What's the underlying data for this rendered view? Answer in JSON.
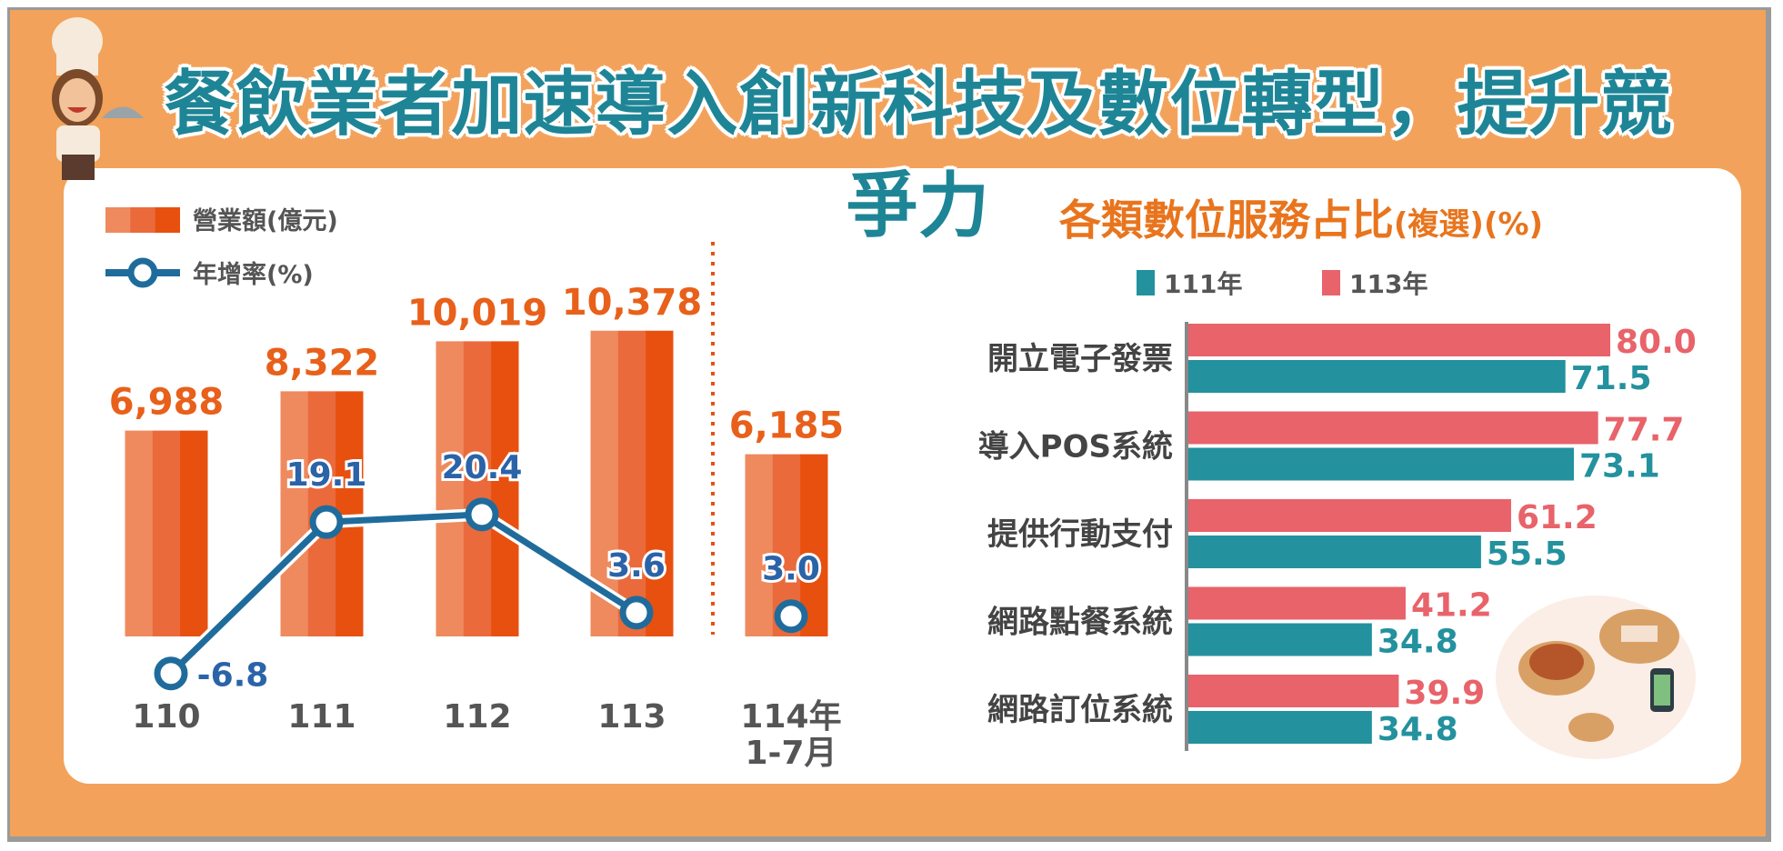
{
  "title": "餐飲業者加速導入創新科技及數位轉型，提升競爭力",
  "colors": {
    "background": "#F2A25A",
    "title": "#1E8596",
    "bar_light": "#EE8A5E",
    "bar_mid": "#EA6A3C",
    "bar_dark": "#E8500F",
    "line": "#1F6C9C",
    "line_label": "#2B63A8",
    "series_111": "#23919E",
    "series_113": "#E8636A",
    "right_title": "#E8751E"
  },
  "chart_data": [
    {
      "type": "bar",
      "title": "",
      "legend": [
        {
          "name": "營業額(億元)",
          "kind": "bar"
        },
        {
          "name": "年增率(%)",
          "kind": "line"
        }
      ],
      "categories": [
        "110",
        "111",
        "112",
        "113",
        "114年 1-7月"
      ],
      "category_lines": [
        [
          "110"
        ],
        [
          "111"
        ],
        [
          "112"
        ],
        [
          "113"
        ],
        [
          "114年",
          "1-7月"
        ]
      ],
      "series": [
        {
          "name": "營業額(億元)",
          "type": "bar",
          "values": [
            6988,
            8322,
            10019,
            10378,
            6185
          ],
          "labels": [
            "6,988",
            "8,322",
            "10,019",
            "10,378",
            "6,185"
          ]
        },
        {
          "name": "年增率(%)",
          "type": "line",
          "values": [
            -6.8,
            19.1,
            20.4,
            3.6,
            3.0
          ],
          "labels": [
            "-6.8",
            "19.1",
            "20.4",
            "3.6",
            "3.0"
          ],
          "connected": [
            true,
            true,
            true,
            true,
            false
          ]
        }
      ],
      "separator_before": "114年 1-7月"
    },
    {
      "type": "bar",
      "orientation": "horizontal",
      "title": "各類數位服務占比",
      "title_suffix": "(複選)(%)",
      "legend": [
        "111年",
        "113年"
      ],
      "categories": [
        "開立電子發票",
        "導入POS系統",
        "提供行動支付",
        "網路點餐系統",
        "網路訂位系統"
      ],
      "series": [
        {
          "name": "113年",
          "values": [
            80.0,
            77.7,
            61.2,
            41.2,
            39.9
          ],
          "labels": [
            "80.0",
            "77.7",
            "61.2",
            "41.2",
            "39.9"
          ]
        },
        {
          "name": "111年",
          "values": [
            71.5,
            73.1,
            55.5,
            34.8,
            34.8
          ],
          "labels": [
            "71.5",
            "73.1",
            "55.5",
            "34.8",
            "34.8"
          ]
        }
      ]
    }
  ]
}
